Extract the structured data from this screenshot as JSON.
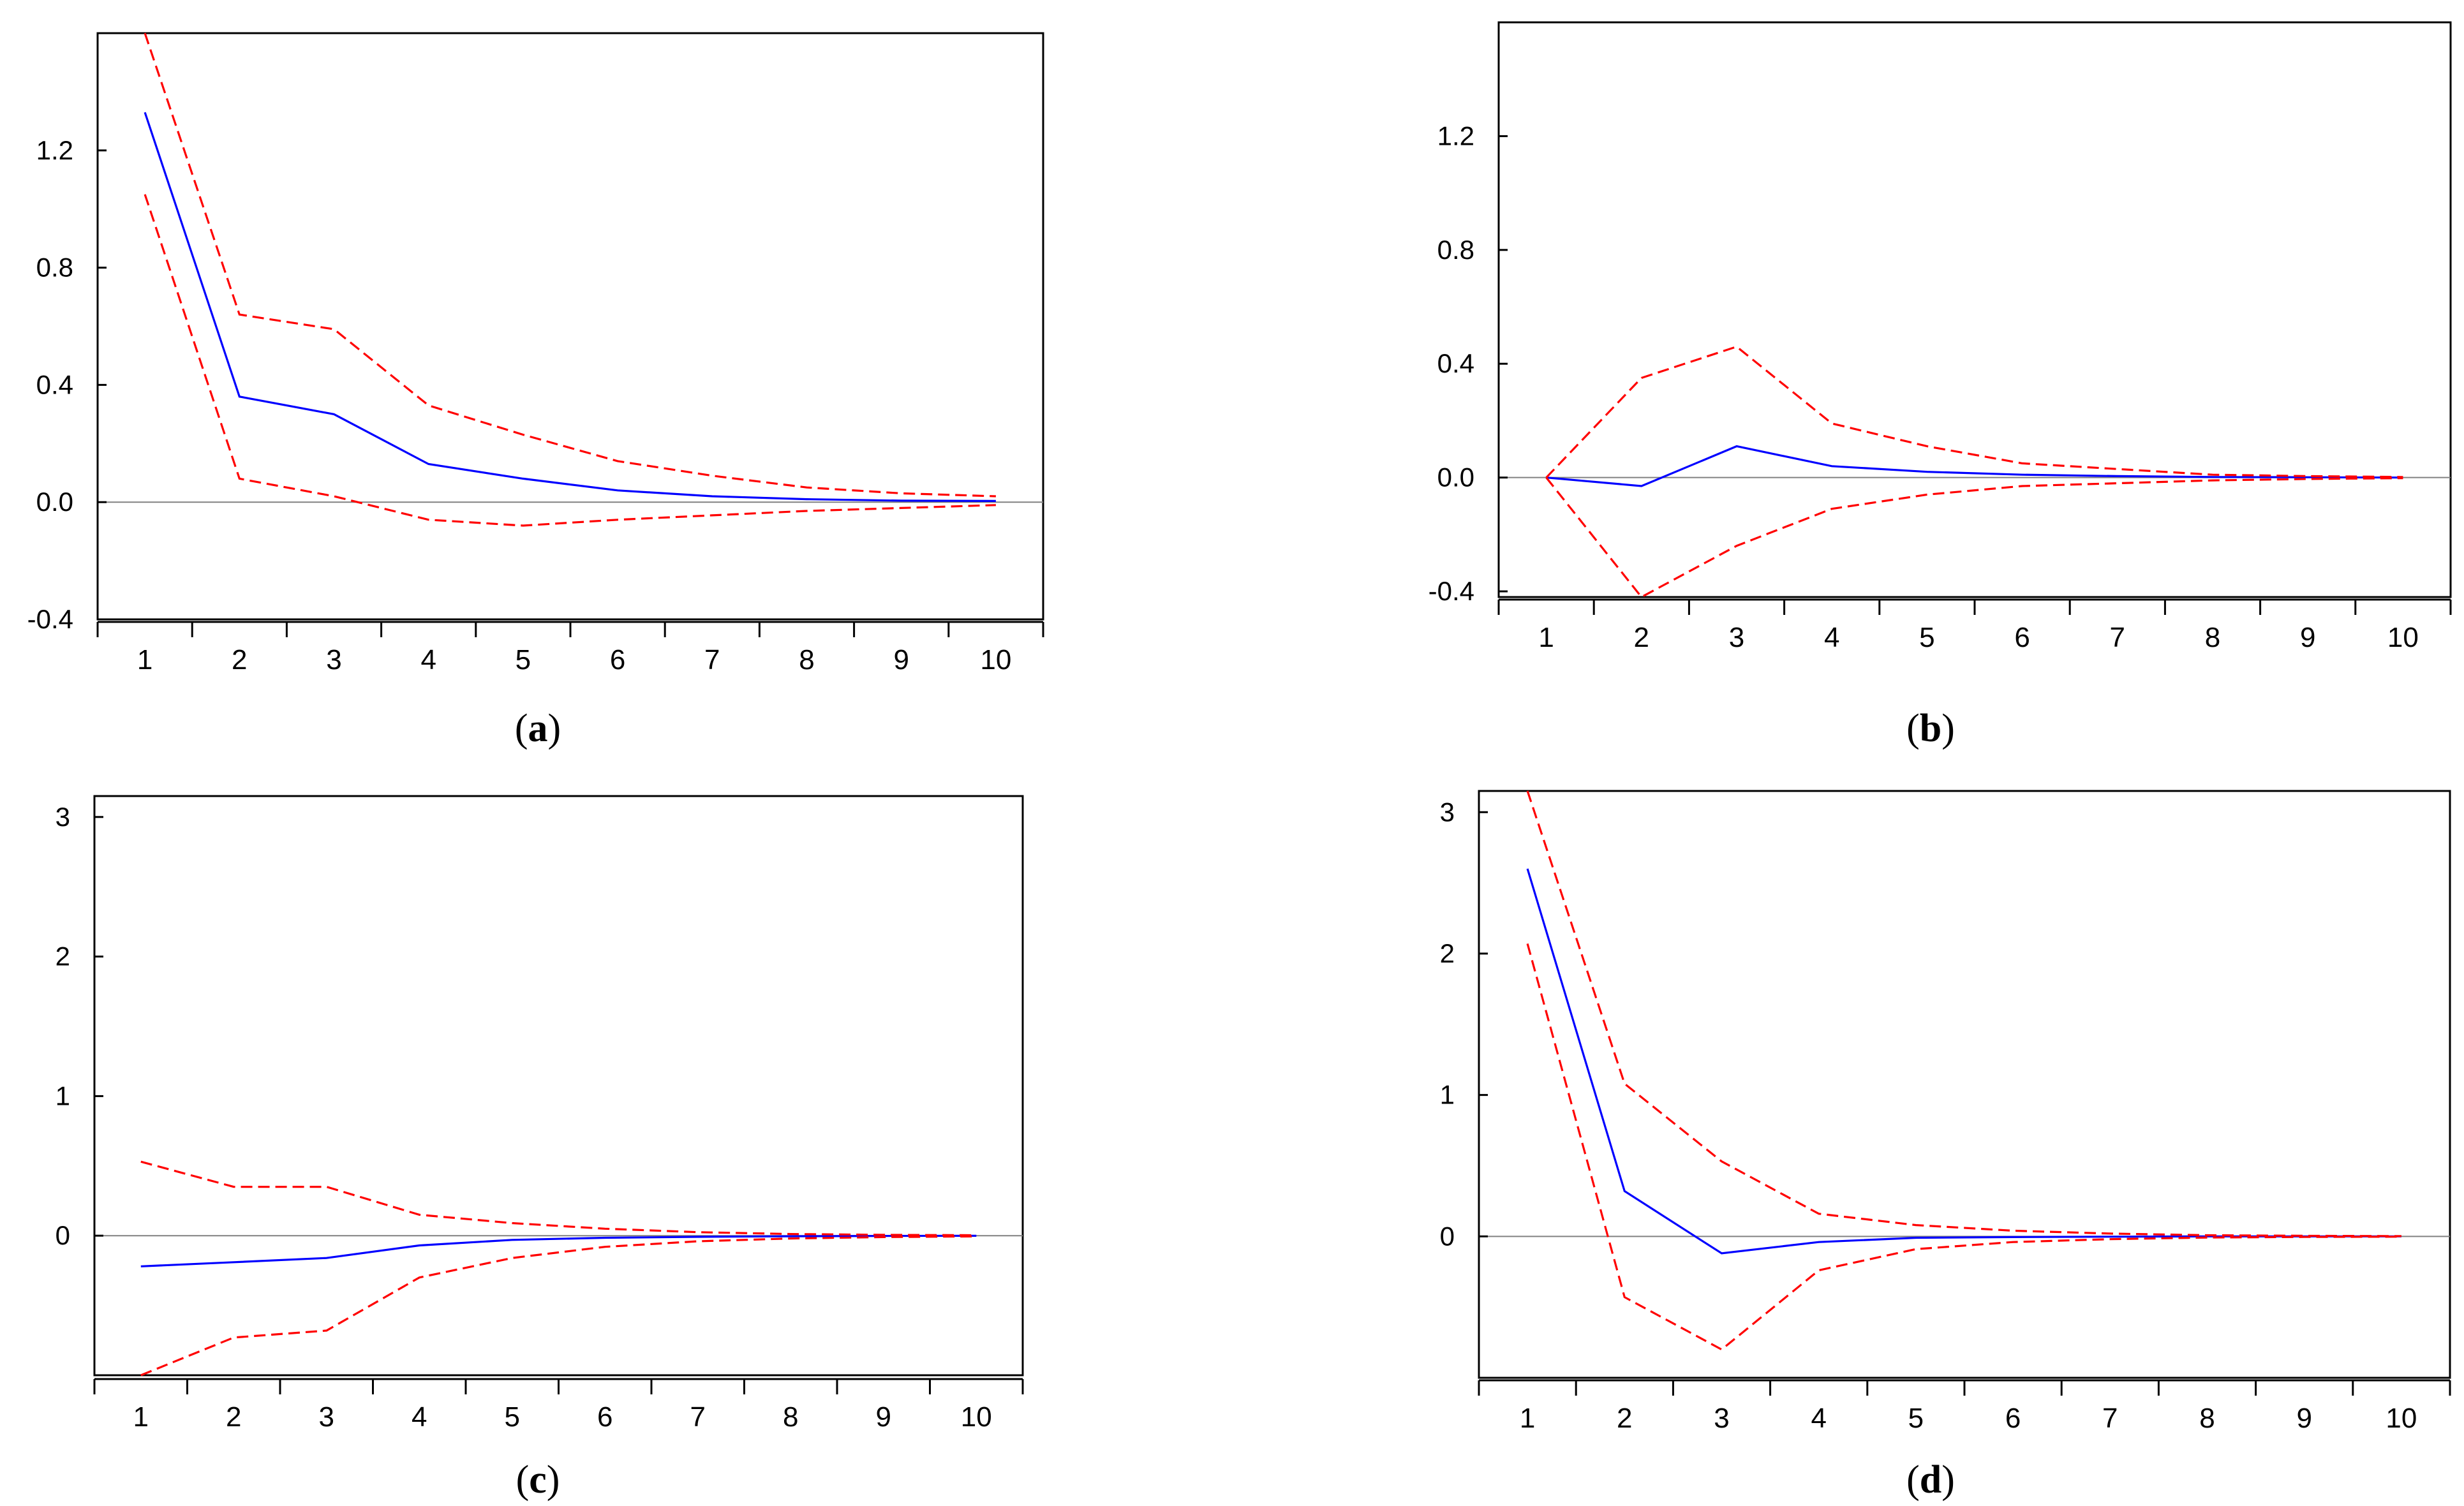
{
  "figure": {
    "panels": [
      "a",
      "b",
      "c",
      "d"
    ]
  },
  "colors": {
    "response": "#0000ff",
    "band": "#ff0000",
    "zero_line": "#808080",
    "frame": "#000000"
  },
  "chart_data": [
    {
      "type": "line",
      "panel": "a",
      "caption": "(a)",
      "caption_letter": "a",
      "categories": [
        1,
        2,
        3,
        4,
        5,
        6,
        7,
        8,
        9,
        10
      ],
      "xlabels": [
        "1",
        "2",
        "3",
        "4",
        "5",
        "6",
        "7",
        "8",
        "9",
        "10"
      ],
      "ylim": [
        -0.4,
        1.6
      ],
      "yticks": [
        -0.4,
        0.0,
        0.4,
        0.8,
        1.2
      ],
      "yticklabels": [
        "-0.4",
        "0.0",
        "0.4",
        "0.8",
        "1.2"
      ],
      "grid": false,
      "series": [
        {
          "name": "response",
          "style": "solid",
          "values": [
            1.33,
            0.36,
            0.3,
            0.13,
            0.08,
            0.04,
            0.02,
            0.01,
            0.005,
            0.004
          ]
        },
        {
          "name": "upper",
          "style": "dashed",
          "values": [
            1.6,
            0.64,
            0.59,
            0.33,
            0.23,
            0.14,
            0.09,
            0.05,
            0.03,
            0.02
          ]
        },
        {
          "name": "lower",
          "style": "dashed",
          "values": [
            1.05,
            0.08,
            0.02,
            -0.06,
            -0.08,
            -0.06,
            -0.045,
            -0.03,
            -0.02,
            -0.01
          ]
        }
      ]
    },
    {
      "type": "line",
      "panel": "b",
      "caption": "(b)",
      "caption_letter": "b",
      "categories": [
        1,
        2,
        3,
        4,
        5,
        6,
        7,
        8,
        9,
        10
      ],
      "xlabels": [
        "1",
        "2",
        "3",
        "4",
        "5",
        "6",
        "7",
        "8",
        "9",
        "10"
      ],
      "ylim": [
        -0.42,
        1.6
      ],
      "yticks": [
        -0.4,
        0.0,
        0.4,
        0.8,
        1.2
      ],
      "yticklabels": [
        "-0.4",
        "0.0",
        "0.4",
        "0.8",
        "1.2"
      ],
      "grid": false,
      "series": [
        {
          "name": "response",
          "style": "solid",
          "values": [
            0.0,
            -0.03,
            0.11,
            0.04,
            0.02,
            0.01,
            0.005,
            0.002,
            0.001,
            0.0
          ]
        },
        {
          "name": "upper",
          "style": "dashed",
          "values": [
            0.0,
            0.35,
            0.46,
            0.19,
            0.11,
            0.05,
            0.03,
            0.01,
            0.005,
            0.002
          ]
        },
        {
          "name": "lower",
          "style": "dashed",
          "values": [
            0.0,
            -0.42,
            -0.24,
            -0.11,
            -0.06,
            -0.03,
            -0.02,
            -0.01,
            -0.005,
            -0.002
          ]
        }
      ]
    },
    {
      "type": "line",
      "panel": "c",
      "caption": "(c)",
      "caption_letter": "c",
      "categories": [
        1,
        2,
        3,
        4,
        5,
        6,
        7,
        8,
        9,
        10
      ],
      "xlabels": [
        "1",
        "2",
        "3",
        "4",
        "5",
        "6",
        "7",
        "8",
        "9",
        "10"
      ],
      "ylim": [
        -1.0,
        3.15
      ],
      "yticks": [
        0,
        1,
        2,
        3
      ],
      "yticklabels": [
        "0",
        "1",
        "2",
        "3"
      ],
      "grid": false,
      "series": [
        {
          "name": "response",
          "style": "solid",
          "values": [
            -0.22,
            -0.19,
            -0.16,
            -0.07,
            -0.03,
            -0.015,
            -0.008,
            -0.004,
            -0.002,
            -0.001
          ]
        },
        {
          "name": "upper",
          "style": "dashed",
          "values": [
            0.53,
            0.35,
            0.35,
            0.15,
            0.09,
            0.05,
            0.025,
            0.012,
            0.006,
            0.003
          ]
        },
        {
          "name": "lower",
          "style": "dashed",
          "values": [
            -1.0,
            -0.73,
            -0.68,
            -0.3,
            -0.16,
            -0.08,
            -0.04,
            -0.02,
            -0.01,
            -0.005
          ]
        }
      ]
    },
    {
      "type": "line",
      "panel": "d",
      "caption": "(d)",
      "caption_letter": "d",
      "categories": [
        1,
        2,
        3,
        4,
        5,
        6,
        7,
        8,
        9,
        10
      ],
      "xlabels": [
        "1",
        "2",
        "3",
        "4",
        "5",
        "6",
        "7",
        "8",
        "9",
        "10"
      ],
      "ylim": [
        -1.0,
        3.15
      ],
      "yticks": [
        0,
        1,
        2,
        3
      ],
      "yticklabels": [
        "0",
        "1",
        "2",
        "3"
      ],
      "grid": false,
      "series": [
        {
          "name": "response",
          "style": "solid",
          "values": [
            2.6,
            0.32,
            -0.12,
            -0.04,
            -0.01,
            -0.005,
            -0.002,
            0.0,
            0.0,
            0.0
          ]
        },
        {
          "name": "upper",
          "style": "dashed",
          "values": [
            3.15,
            1.08,
            0.53,
            0.16,
            0.08,
            0.04,
            0.02,
            0.008,
            0.004,
            0.002
          ]
        },
        {
          "name": "lower",
          "style": "dashed",
          "values": [
            2.07,
            -0.43,
            -0.8,
            -0.24,
            -0.09,
            -0.04,
            -0.02,
            -0.008,
            -0.004,
            -0.002
          ]
        }
      ]
    }
  ]
}
